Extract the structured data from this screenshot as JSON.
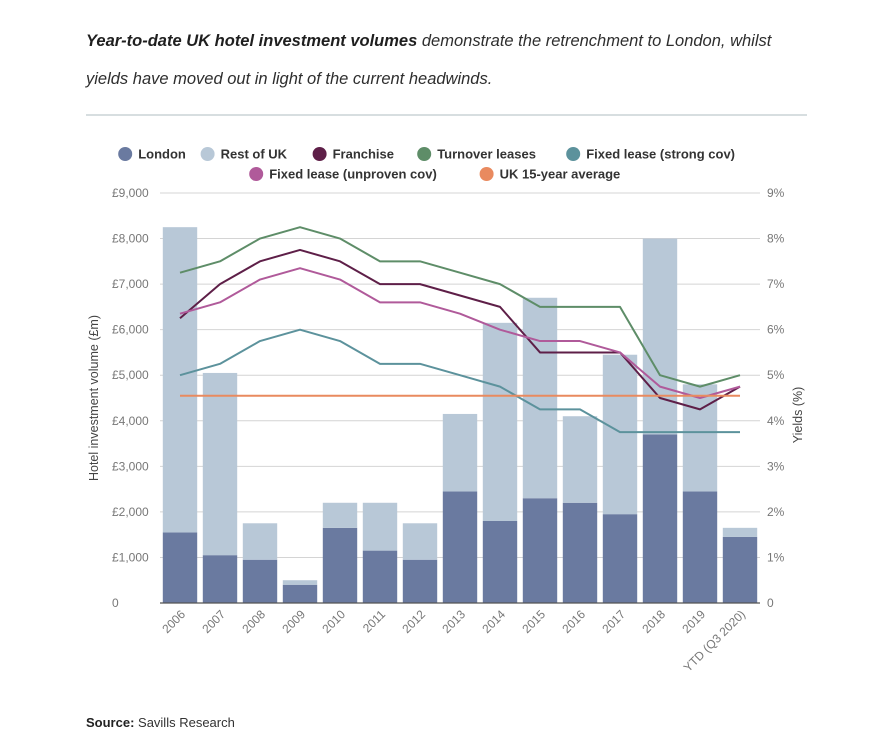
{
  "headline": {
    "bold": "Year-to-date UK hotel investment volumes",
    "rest": " demonstrate the retrenchment to London, whilst yields have moved out in light of the current headwinds."
  },
  "source": {
    "label": "Source:",
    "text": " Savills Research"
  },
  "chart_data": {
    "type": "bar",
    "stacked": true,
    "categories": [
      "2006",
      "2007",
      "2008",
      "2009",
      "2010",
      "2011",
      "2012",
      "2013",
      "2014",
      "2015",
      "2016",
      "2017",
      "2018",
      "2019",
      "YTD (Q3 2020)"
    ],
    "ylabel": "Hotel investment volume (£m)",
    "y2label": "Yields (%)",
    "ylim": [
      0,
      9000
    ],
    "y2lim": [
      0,
      9
    ],
    "yticks": [
      "0",
      "£1,000",
      "£2,000",
      "£3,000",
      "£4,000",
      "£5,000",
      "£6,000",
      "£7,000",
      "£8,000",
      "£9,000"
    ],
    "y2ticks": [
      "0",
      "1%",
      "2%",
      "3%",
      "4%",
      "5%",
      "6%",
      "7%",
      "8%",
      "9%"
    ],
    "grid": true,
    "legend_position": "top",
    "series": [
      {
        "name": "London",
        "kind": "bar",
        "axis": "left",
        "color": "#6a7aa0",
        "values": [
          1550,
          1050,
          950,
          400,
          1650,
          1150,
          950,
          2450,
          1800,
          2300,
          2200,
          1950,
          3700,
          2450,
          1450
        ]
      },
      {
        "name": "Rest of UK",
        "kind": "bar",
        "axis": "left",
        "color": "#b8c8d7",
        "values": [
          6700,
          4000,
          800,
          100,
          550,
          1050,
          800,
          1700,
          4350,
          4400,
          1900,
          3500,
          4300,
          2350,
          200
        ]
      },
      {
        "name": "Franchise",
        "kind": "line",
        "axis": "right",
        "color": "#5e1f48",
        "values": [
          6.25,
          7.0,
          7.5,
          7.75,
          7.5,
          7.0,
          7.0,
          6.75,
          6.5,
          5.5,
          5.5,
          5.5,
          4.5,
          4.25,
          4.75
        ]
      },
      {
        "name": "Turnover leases",
        "kind": "line",
        "axis": "right",
        "color": "#5e8d68",
        "values": [
          7.25,
          7.5,
          8.0,
          8.25,
          8.0,
          7.5,
          7.5,
          7.25,
          7.0,
          6.5,
          6.5,
          6.5,
          5.0,
          4.75,
          5.0
        ]
      },
      {
        "name": "Fixed lease (strong cov)",
        "kind": "line",
        "axis": "right",
        "color": "#5c929c",
        "values": [
          5.0,
          5.25,
          5.75,
          6.0,
          5.75,
          5.25,
          5.25,
          5.0,
          4.75,
          4.25,
          4.25,
          3.75,
          3.75,
          3.75,
          3.75
        ]
      },
      {
        "name": "Fixed lease (unproven cov)",
        "kind": "line",
        "axis": "right",
        "color": "#b05a9a",
        "values": [
          6.35,
          6.6,
          7.1,
          7.35,
          7.1,
          6.6,
          6.6,
          6.35,
          6.0,
          5.75,
          5.75,
          5.5,
          4.75,
          4.5,
          4.75
        ]
      },
      {
        "name": "UK 15-year average",
        "kind": "line",
        "axis": "right",
        "color": "#e98a5f",
        "values": [
          4.55,
          4.55,
          4.55,
          4.55,
          4.55,
          4.55,
          4.55,
          4.55,
          4.55,
          4.55,
          4.55,
          4.55,
          4.55,
          4.55,
          4.55
        ]
      }
    ]
  },
  "colors": {
    "grid": "#d4d4d4",
    "axis": "#555555",
    "tick": "#777777"
  }
}
